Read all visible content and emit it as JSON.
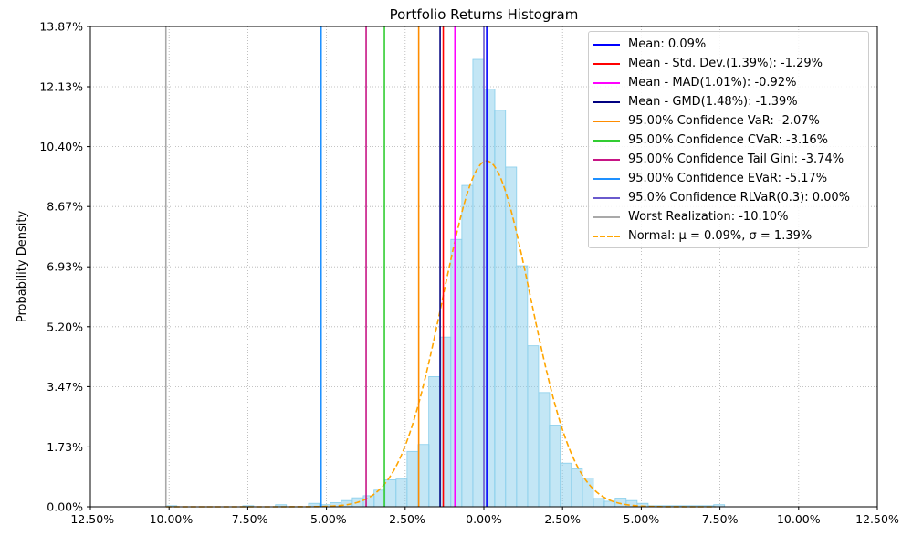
{
  "chart_data": {
    "type": "bar",
    "title": "Portfolio Returns Histogram",
    "xlabel": "",
    "ylabel": "Probability Density",
    "xlim": [
      -0.125,
      0.125
    ],
    "ylim": [
      0,
      0.1387
    ],
    "x_ticks": [
      "-12.50%",
      "-10.00%",
      "-7.50%",
      "-5.00%",
      "-2.50%",
      "0.00%",
      "2.50%",
      "5.00%",
      "7.50%",
      "10.00%",
      "12.50%"
    ],
    "x_tick_values": [
      -0.125,
      -0.1,
      -0.075,
      -0.05,
      -0.025,
      0.0,
      0.025,
      0.05,
      0.075,
      0.1,
      0.125
    ],
    "y_ticks": [
      "0.00%",
      "1.73%",
      "3.47%",
      "5.20%",
      "6.93%",
      "8.67%",
      "10.40%",
      "12.13%",
      "13.87%"
    ],
    "y_tick_values": [
      0.0,
      0.0173,
      0.0347,
      0.052,
      0.0693,
      0.0867,
      0.104,
      0.1213,
      0.1387
    ],
    "grid": true,
    "legend_position": "top-right",
    "histogram": {
      "color": "#87ceeb",
      "edge_color": "#87ceeb",
      "bin_width": 0.00348,
      "bins_left": [
        -0.101,
        -0.0975,
        -0.094,
        -0.0905,
        -0.087,
        -0.0836,
        -0.0801,
        -0.0766,
        -0.0731,
        -0.0697,
        -0.0662,
        -0.0627,
        -0.0592,
        -0.0557,
        -0.0523,
        -0.0488,
        -0.0453,
        -0.0418,
        -0.0383,
        -0.0349,
        -0.0314,
        -0.0279,
        -0.0244,
        -0.0209,
        -0.0175,
        -0.014,
        -0.0105,
        -0.007,
        -0.0035,
        0.0,
        0.0034,
        0.0069,
        0.0104,
        0.0139,
        0.0174,
        0.0208,
        0.0243,
        0.0278,
        0.0313,
        0.0348,
        0.0382,
        0.0417,
        0.0452,
        0.0487,
        0.0522,
        0.0556,
        0.0591,
        0.0626,
        0.0661,
        0.0696,
        0.073
      ],
      "density": [
        0.0003,
        0,
        0,
        0,
        0,
        0,
        0,
        0.0003,
        0,
        0,
        0.0006,
        0,
        0,
        0.001,
        0.0006,
        0.0012,
        0.0018,
        0.0026,
        0.0032,
        0.0048,
        0.0078,
        0.008,
        0.016,
        0.018,
        0.0376,
        0.049,
        0.0772,
        0.0928,
        0.1292,
        0.1206,
        0.1145,
        0.0981,
        0.0696,
        0.0465,
        0.033,
        0.0236,
        0.0126,
        0.011,
        0.0083,
        0.0024,
        0.0016,
        0.0025,
        0.0018,
        0.001,
        0.0003,
        0.0003,
        0.0003,
        0.0003,
        0.0003,
        0.0003,
        0.0006
      ]
    },
    "normal": {
      "mu": 0.0009,
      "sigma": 0.0139,
      "color": "#ffa500"
    },
    "vlines": [
      {
        "x": 0.0009,
        "color": "#0000ff"
      },
      {
        "x": -0.0129,
        "color": "#ff0000"
      },
      {
        "x": -0.0092,
        "color": "#ff00ff"
      },
      {
        "x": -0.0139,
        "color": "#000080"
      },
      {
        "x": -0.0207,
        "color": "#ff8c00"
      },
      {
        "x": -0.0316,
        "color": "#32cd32"
      },
      {
        "x": -0.0374,
        "color": "#c71585"
      },
      {
        "x": -0.0517,
        "color": "#1e90ff"
      },
      {
        "x": 0.0,
        "color": "#6a5acd"
      },
      {
        "x": -0.101,
        "color": "#a9a9a9"
      }
    ],
    "legend": [
      {
        "label": "Mean: 0.09%",
        "color": "#0000ff",
        "style": "solid"
      },
      {
        "label": "Mean - Std. Dev.(1.39%): -1.29%",
        "color": "#ff0000",
        "style": "solid"
      },
      {
        "label": "Mean - MAD(1.01%): -0.92%",
        "color": "#ff00ff",
        "style": "solid"
      },
      {
        "label": "Mean - GMD(1.48%): -1.39%",
        "color": "#000080",
        "style": "solid"
      },
      {
        "label": "95.00% Confidence VaR: -2.07%",
        "color": "#ff8c00",
        "style": "solid"
      },
      {
        "label": "95.00% Confidence CVaR: -3.16%",
        "color": "#32cd32",
        "style": "solid"
      },
      {
        "label": "95.00% Confidence Tail Gini: -3.74%",
        "color": "#c71585",
        "style": "solid"
      },
      {
        "label": "95.00% Confidence EVaR: -5.17%",
        "color": "#1e90ff",
        "style": "solid"
      },
      {
        "label": "95.0% Confidence RLVaR(0.3): 0.00%",
        "color": "#6a5acd",
        "style": "solid"
      },
      {
        "label": "Worst Realization: -10.10%",
        "color": "#a9a9a9",
        "style": "solid"
      },
      {
        "label": "Normal: μ = 0.09%, σ = 1.39%",
        "color": "#ffa500",
        "style": "dashed"
      }
    ]
  }
}
